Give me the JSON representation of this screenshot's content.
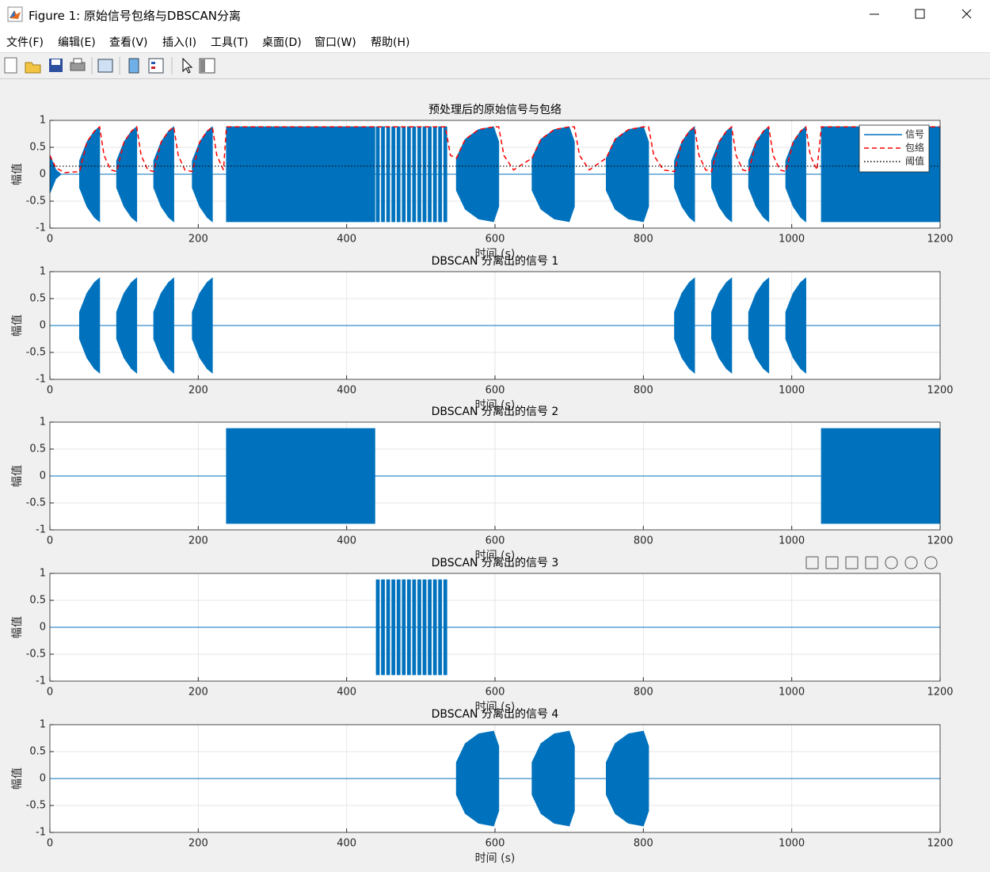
{
  "window": {
    "title": "Figure 1: 原始信号包络与DBSCAN分离",
    "menu": [
      "文件(F)",
      "编辑(E)",
      "查看(V)",
      "插入(I)",
      "工具(T)",
      "桌面(D)",
      "窗口(W)",
      "帮助(H)"
    ]
  },
  "chart_data": [
    {
      "type": "line",
      "title": "预处理后的原始信号与包络",
      "xlabel": "时间 (s)",
      "ylabel": "幅值",
      "xlim": [
        0,
        1200
      ],
      "ylim": [
        -1,
        1
      ],
      "xticks": [
        0,
        200,
        400,
        600,
        800,
        1000,
        1200
      ],
      "yticks": [
        -1,
        -0.5,
        0,
        0.5,
        1
      ],
      "grid": true,
      "legend": "upper right",
      "series": [
        {
          "name": "信号",
          "color": "#0072bd",
          "style": "filled",
          "x": [
            0,
            8,
            15,
            40,
            40,
            50,
            60,
            67,
            67,
            90,
            90,
            100,
            110,
            117,
            117,
            140,
            140,
            150,
            160,
            167,
            167,
            192,
            192,
            202,
            212,
            219,
            219,
            238,
            238,
            438,
            438,
            440,
            440,
            444,
            444,
            447,
            447,
            451,
            451,
            454,
            454,
            458,
            458,
            461,
            461,
            465,
            465,
            468,
            468,
            472,
            472,
            475,
            475,
            479,
            479,
            482,
            482,
            486,
            486,
            489,
            489,
            493,
            493,
            496,
            496,
            500,
            500,
            503,
            503,
            507,
            507,
            510,
            510,
            514,
            514,
            517,
            517,
            521,
            521,
            524,
            524,
            528,
            528,
            531,
            531,
            535,
            535,
            548,
            548,
            560,
            578,
            598,
            605,
            605,
            650,
            650,
            662,
            680,
            700,
            707,
            707,
            750,
            750,
            762,
            780,
            800,
            807,
            807,
            842,
            842,
            852,
            862,
            869,
            869,
            892,
            892,
            902,
            912,
            919,
            919,
            942,
            942,
            952,
            962,
            969,
            969,
            992,
            992,
            1002,
            1012,
            1019,
            1019,
            1040,
            1040,
            1200
          ],
          "values": [
            0.35,
            0.08,
            0,
            0,
            0.25,
            0.6,
            0.8,
            0.88,
            0,
            0,
            0.25,
            0.6,
            0.8,
            0.88,
            0,
            0,
            0.25,
            0.6,
            0.8,
            0.88,
            0,
            0,
            0.25,
            0.6,
            0.8,
            0.88,
            0,
            0,
            0.88,
            0.88,
            0,
            0,
            0.88,
            0.88,
            0,
            0,
            0.88,
            0.88,
            0,
            0,
            0.88,
            0.88,
            0,
            0,
            0.88,
            0.88,
            0,
            0,
            0.88,
            0.88,
            0,
            0,
            0.88,
            0.88,
            0,
            0,
            0.88,
            0.88,
            0,
            0,
            0.88,
            0.88,
            0,
            0,
            0.88,
            0.88,
            0,
            0,
            0.88,
            0.88,
            0,
            0,
            0.88,
            0.88,
            0,
            0,
            0.88,
            0.88,
            0,
            0,
            0.88,
            0.88,
            0,
            0,
            0.88,
            0.88,
            0,
            0,
            0.3,
            0.65,
            0.83,
            0.88,
            0.6,
            0,
            0,
            0.3,
            0.65,
            0.83,
            0.88,
            0.6,
            0,
            0,
            0.3,
            0.65,
            0.83,
            0.88,
            0.6,
            0,
            0,
            0.25,
            0.6,
            0.8,
            0.88,
            0,
            0,
            0.25,
            0.6,
            0.8,
            0.88,
            0,
            0,
            0.25,
            0.6,
            0.8,
            0.88,
            0,
            0,
            0.25,
            0.6,
            0.8,
            0.88,
            0,
            0,
            0.88,
            0.88
          ]
        },
        {
          "name": "包络",
          "color": "#ff0000",
          "style": "dashed",
          "x": [
            0,
            8,
            20,
            40,
            50,
            60,
            67,
            73,
            82,
            90,
            100,
            110,
            117,
            123,
            132,
            140,
            150,
            160,
            167,
            173,
            182,
            192,
            202,
            212,
            219,
            225,
            234,
            238,
            533,
            540,
            548,
            560,
            578,
            598,
            605,
            612,
            625,
            650,
            662,
            680,
            700,
            707,
            714,
            727,
            750,
            762,
            780,
            800,
            807,
            814,
            827,
            842,
            852,
            862,
            869,
            875,
            884,
            892,
            902,
            912,
            919,
            925,
            934,
            942,
            952,
            962,
            969,
            975,
            984,
            992,
            1002,
            1012,
            1019,
            1025,
            1034,
            1040,
            1200
          ],
          "values": [
            0.35,
            0.12,
            0.03,
            0.05,
            0.6,
            0.8,
            0.88,
            0.35,
            0.08,
            0.05,
            0.6,
            0.8,
            0.88,
            0.35,
            0.08,
            0.05,
            0.6,
            0.8,
            0.88,
            0.35,
            0.08,
            0.05,
            0.6,
            0.8,
            0.88,
            0.35,
            0.08,
            0.88,
            0.88,
            0.35,
            0.3,
            0.65,
            0.83,
            0.88,
            0.88,
            0.35,
            0.08,
            0.3,
            0.65,
            0.83,
            0.88,
            0.88,
            0.35,
            0.08,
            0.3,
            0.65,
            0.83,
            0.88,
            0.88,
            0.35,
            0.08,
            0.05,
            0.6,
            0.8,
            0.88,
            0.35,
            0.08,
            0.05,
            0.6,
            0.8,
            0.88,
            0.35,
            0.08,
            0.05,
            0.6,
            0.8,
            0.88,
            0.35,
            0.08,
            0.05,
            0.6,
            0.8,
            0.88,
            0.35,
            0.08,
            0.88,
            0.88
          ]
        },
        {
          "name": "阈值",
          "color": "#000000",
          "style": "dotted",
          "x": [
            0,
            1200
          ],
          "values": [
            0.15,
            0.15
          ]
        }
      ]
    },
    {
      "type": "line",
      "title": "DBSCAN 分离出的信号 1",
      "xlabel": "时间 (s)",
      "ylabel": "幅值",
      "xlim": [
        0,
        1200
      ],
      "ylim": [
        -1,
        1
      ],
      "xticks": [
        0,
        200,
        400,
        600,
        800,
        1000,
        1200
      ],
      "yticks": [
        -1,
        -0.5,
        0,
        0.5,
        1
      ],
      "grid": true,
      "series": [
        {
          "color": "#0072bd",
          "style": "filled",
          "x": [
            0,
            40,
            40,
            50,
            60,
            67,
            67,
            90,
            90,
            100,
            110,
            117,
            117,
            140,
            140,
            150,
            160,
            167,
            167,
            192,
            192,
            202,
            212,
            219,
            219,
            842,
            842,
            852,
            862,
            869,
            869,
            892,
            892,
            902,
            912,
            919,
            919,
            942,
            942,
            952,
            962,
            969,
            969,
            992,
            992,
            1002,
            1012,
            1019,
            1019,
            1200
          ],
          "values": [
            0,
            0,
            0.25,
            0.6,
            0.8,
            0.88,
            0,
            0,
            0.25,
            0.6,
            0.8,
            0.88,
            0,
            0,
            0.25,
            0.6,
            0.8,
            0.88,
            0,
            0,
            0.25,
            0.6,
            0.8,
            0.88,
            0,
            0,
            0.25,
            0.6,
            0.8,
            0.88,
            0,
            0,
            0.25,
            0.6,
            0.8,
            0.88,
            0,
            0,
            0.25,
            0.6,
            0.8,
            0.88,
            0,
            0,
            0.25,
            0.6,
            0.8,
            0.88,
            0,
            0
          ]
        }
      ]
    },
    {
      "type": "line",
      "title": "DBSCAN 分离出的信号 2",
      "xlabel": "时间 (s)",
      "ylabel": "幅值",
      "xlim": [
        0,
        1200
      ],
      "ylim": [
        -1,
        1
      ],
      "xticks": [
        0,
        200,
        400,
        600,
        800,
        1000,
        1200
      ],
      "yticks": [
        -1,
        -0.5,
        0,
        0.5,
        1
      ],
      "grid": true,
      "series": [
        {
          "color": "#0072bd",
          "style": "filled",
          "x": [
            0,
            238,
            238,
            438,
            438,
            1040,
            1040,
            1200
          ],
          "values": [
            0,
            0,
            0.88,
            0.88,
            0,
            0,
            0.88,
            0.88
          ]
        }
      ]
    },
    {
      "type": "line",
      "title": "DBSCAN 分离出的信号 3",
      "xlabel": "时间 (s)",
      "ylabel": "幅值",
      "xlim": [
        0,
        1200
      ],
      "ylim": [
        -1,
        1
      ],
      "xticks": [
        0,
        200,
        400,
        600,
        800,
        1000,
        1200
      ],
      "yticks": [
        -1,
        -0.5,
        0,
        0.5,
        1
      ],
      "grid": true,
      "series": [
        {
          "color": "#0072bd",
          "style": "filled",
          "x": [
            0,
            440,
            440,
            444,
            444,
            447,
            447,
            451,
            451,
            454,
            454,
            458,
            458,
            461,
            461,
            465,
            465,
            468,
            468,
            472,
            472,
            475,
            475,
            479,
            479,
            482,
            482,
            486,
            486,
            489,
            489,
            493,
            493,
            496,
            496,
            500,
            500,
            503,
            503,
            507,
            507,
            510,
            510,
            514,
            514,
            517,
            517,
            521,
            521,
            524,
            524,
            528,
            528,
            531,
            531,
            535,
            535,
            1200
          ],
          "values": [
            0,
            0,
            0.88,
            0.88,
            0,
            0,
            0.88,
            0.88,
            0,
            0,
            0.88,
            0.88,
            0,
            0,
            0.88,
            0.88,
            0,
            0,
            0.88,
            0.88,
            0,
            0,
            0.88,
            0.88,
            0,
            0,
            0.88,
            0.88,
            0,
            0,
            0.88,
            0.88,
            0,
            0,
            0.88,
            0.88,
            0,
            0,
            0.88,
            0.88,
            0,
            0,
            0.88,
            0.88,
            0,
            0,
            0.88,
            0.88,
            0,
            0,
            0.88,
            0.88,
            0,
            0,
            0.88,
            0.88,
            0,
            0
          ]
        }
      ]
    },
    {
      "type": "line",
      "title": "DBSCAN 分离出的信号 4",
      "xlabel": "时间 (s)",
      "ylabel": "幅值",
      "xlim": [
        0,
        1200
      ],
      "ylim": [
        -1,
        1
      ],
      "xticks": [
        0,
        200,
        400,
        600,
        800,
        1000,
        1200
      ],
      "yticks": [
        -1,
        -0.5,
        0,
        0.5,
        1
      ],
      "grid": true,
      "series": [
        {
          "color": "#0072bd",
          "style": "filled",
          "x": [
            0,
            548,
            548,
            560,
            578,
            598,
            605,
            605,
            650,
            650,
            662,
            680,
            700,
            707,
            707,
            750,
            750,
            762,
            780,
            800,
            807,
            807,
            1200
          ],
          "values": [
            0,
            0,
            0.3,
            0.65,
            0.83,
            0.88,
            0.6,
            0,
            0,
            0.3,
            0.65,
            0.83,
            0.88,
            0.6,
            0,
            0,
            0.3,
            0.65,
            0.83,
            0.88,
            0.6,
            0,
            0
          ]
        }
      ]
    }
  ]
}
